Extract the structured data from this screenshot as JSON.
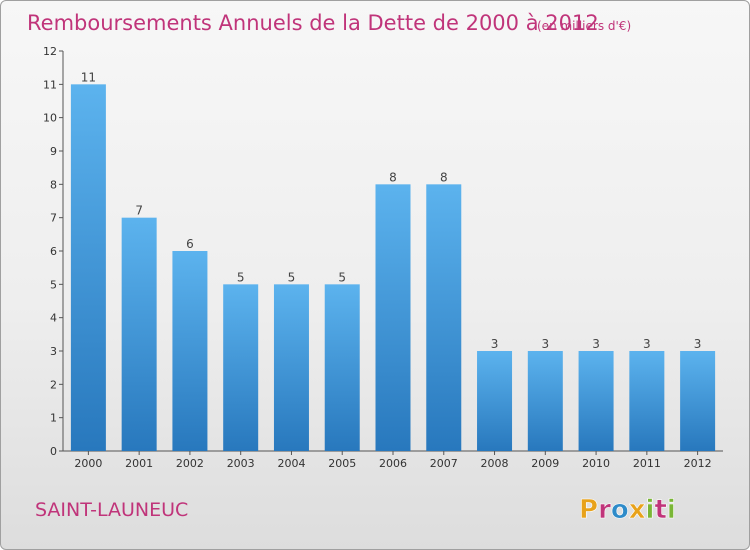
{
  "chart_data": {
    "type": "bar",
    "title": "Remboursements Annuels de la Dette de 2000 à 2012",
    "subtitle": "(en milliers d'€)",
    "categories": [
      "2000",
      "2001",
      "2002",
      "2003",
      "2004",
      "2005",
      "2006",
      "2007",
      "2008",
      "2009",
      "2010",
      "2011",
      "2012"
    ],
    "values": [
      11,
      7,
      6,
      5,
      5,
      5,
      8,
      8,
      3,
      3,
      3,
      3,
      3
    ],
    "data_labels": [
      "11",
      "7",
      "6",
      "5",
      "5",
      "5",
      "8",
      "8",
      "3",
      "3",
      "3",
      "3",
      "3"
    ],
    "xlabel": "",
    "ylabel": "",
    "ylim": [
      0,
      12
    ],
    "yticks": [
      "0",
      "1",
      "2",
      "3",
      "4",
      "5",
      "6",
      "7",
      "8",
      "9",
      "10",
      "11",
      "12"
    ],
    "grid": false,
    "bar_color": "#4a9fdc"
  },
  "footer": {
    "commune": "SAINT-LAUNEUC",
    "logo": "Proxiti",
    "logo_colors": [
      "#e8a21a",
      "#c0347a",
      "#2e8bc9",
      "#e8a21a",
      "#7ab636",
      "#c0347a",
      "#7ab636"
    ]
  },
  "colors": {
    "accent": "#c0347a",
    "bar_top": "#5cb3ee",
    "bar_bottom": "#2878bd"
  }
}
